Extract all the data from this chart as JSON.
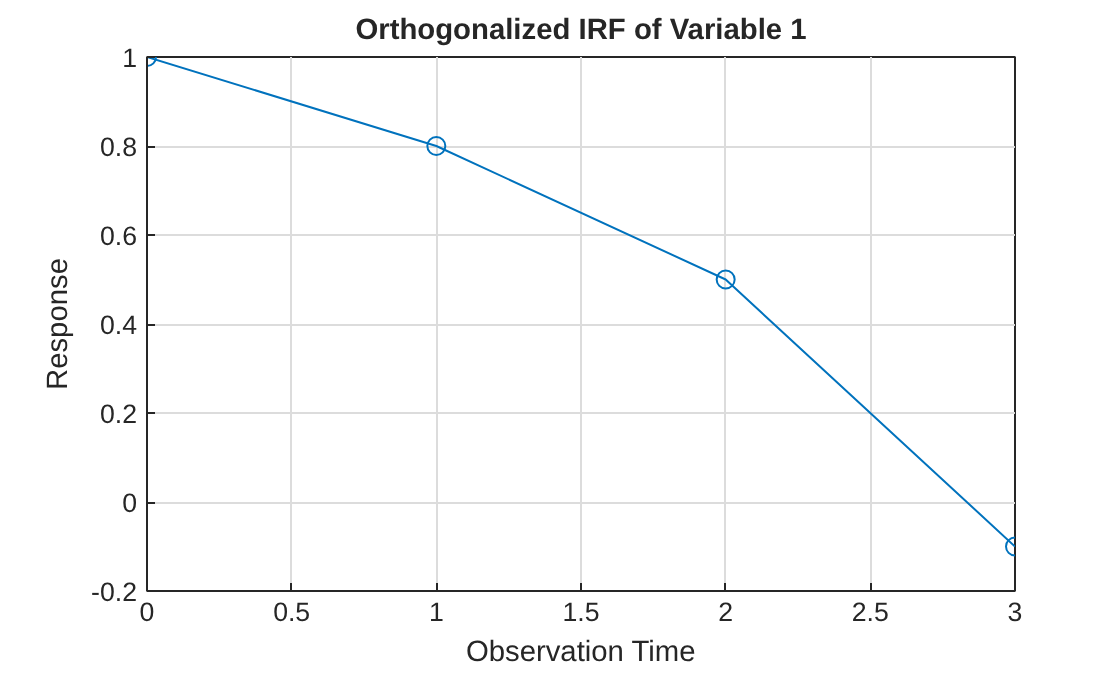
{
  "chart_data": {
    "type": "line",
    "title": "Orthogonalized IRF of Variable 1",
    "xlabel": "Observation Time",
    "ylabel": "Response",
    "x": [
      0,
      1,
      2,
      3
    ],
    "series": [
      {
        "color": "#0072bd",
        "values": [
          1,
          0.8,
          0.5,
          -0.1
        ]
      }
    ],
    "xlim": [
      0,
      3
    ],
    "xticks": [
      0,
      0.5,
      1,
      1.5,
      2,
      2.5,
      3
    ],
    "ylim": [
      -0.2,
      1
    ],
    "yticks": [
      -0.2,
      0,
      0.2,
      0.4,
      0.6,
      0.8,
      1
    ],
    "grid": true,
    "marker": "circle",
    "line_style": "solid"
  }
}
